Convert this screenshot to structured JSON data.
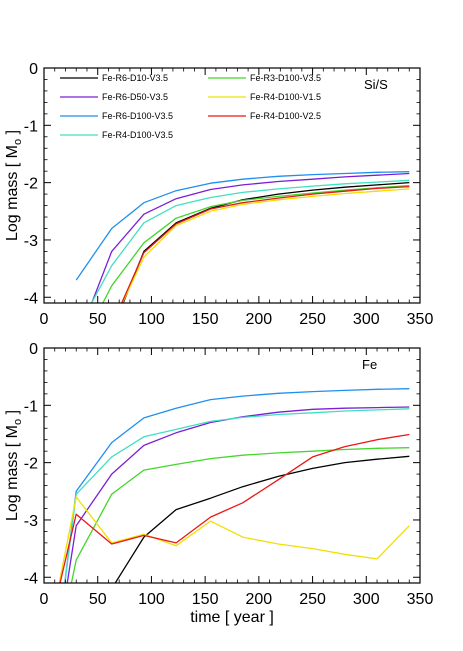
{
  "chart_data": [
    {
      "type": "line",
      "annotation": "Si/S",
      "xlabel": "",
      "ylabel": "Log mass [ M",
      "ylabel_sub": "o",
      "ylabel_end": " ]",
      "xlim": [
        0,
        350
      ],
      "ylim": [
        -4.1,
        0
      ],
      "xticks": [
        "0",
        "50",
        "100",
        "150",
        "200",
        "250",
        "300",
        "350"
      ],
      "yticks": [
        "0",
        "-1",
        "-2",
        "-3",
        "-4"
      ],
      "x": [
        10,
        30,
        63,
        93,
        123,
        155,
        185,
        218,
        250,
        280,
        310,
        340
      ],
      "legend": [
        {
          "name": "Fe-R6-D10-V3.5",
          "color": "#000000"
        },
        {
          "name": "Fe-R6-D50-V3.5",
          "color": "#7b1fd6"
        },
        {
          "name": "Fe-R6-D100-V3.5",
          "color": "#1f8ff0"
        },
        {
          "name": "Fe-R4-D100-V3.5",
          "color": "#40e0c0"
        },
        {
          "name": "Fe-R3-D100-V3.5",
          "color": "#44d62c"
        },
        {
          "name": "Fe-R4-D100-V1.5",
          "color": "#f0e000"
        },
        {
          "name": "Fe-R4-D100-V2.5",
          "color": "#e81818"
        }
      ],
      "series": [
        {
          "name": "Fe-R6-D10-V3.5",
          "values": [
            null,
            -5.2,
            -4.6,
            -3.2,
            -2.7,
            -2.45,
            -2.3,
            -2.2,
            -2.13,
            -2.08,
            -2.04,
            -2.0
          ]
        },
        {
          "name": "Fe-R6-D50-V3.5",
          "values": [
            null,
            -4.8,
            -3.2,
            -2.55,
            -2.28,
            -2.12,
            -2.04,
            -1.98,
            -1.94,
            -1.9,
            -1.87,
            -1.84
          ]
        },
        {
          "name": "Fe-R6-D100-V3.5",
          "values": [
            null,
            -3.7,
            -2.8,
            -2.35,
            -2.14,
            -2.01,
            -1.94,
            -1.89,
            -1.86,
            -1.84,
            -1.82,
            -1.81
          ]
        },
        {
          "name": "Fe-R4-D100-V3.5",
          "values": [
            null,
            -4.6,
            -3.45,
            -2.7,
            -2.4,
            -2.26,
            -2.17,
            -2.11,
            -2.06,
            -2.02,
            -1.99,
            -1.96
          ]
        },
        {
          "name": "Fe-R3-D100-V3.5",
          "values": [
            null,
            -5.0,
            -3.8,
            -3.05,
            -2.62,
            -2.42,
            -2.31,
            -2.24,
            -2.18,
            -2.13,
            -2.09,
            -2.05
          ]
        },
        {
          "name": "Fe-R4-D100-V1.5",
          "values": [
            null,
            -5.3,
            -4.5,
            -3.3,
            -2.75,
            -2.5,
            -2.38,
            -2.3,
            -2.24,
            -2.19,
            -2.15,
            -2.11
          ]
        },
        {
          "name": "Fe-R4-D100-V2.5",
          "values": [
            null,
            -5.2,
            -4.5,
            -3.22,
            -2.72,
            -2.46,
            -2.35,
            -2.27,
            -2.2,
            -2.15,
            -2.1,
            -2.07
          ]
        }
      ]
    },
    {
      "type": "line",
      "annotation": "Fe",
      "xlabel": "time [ year ]",
      "ylabel": "Log mass [ M",
      "ylabel_sub": "o",
      "ylabel_end": " ]",
      "xlim": [
        0,
        350
      ],
      "ylim": [
        -4.1,
        0
      ],
      "xticks": [
        "0",
        "50",
        "100",
        "150",
        "200",
        "250",
        "300",
        "350"
      ],
      "yticks": [
        "0",
        "-1",
        "-2",
        "-3",
        "-4"
      ],
      "x": [
        10,
        30,
        63,
        93,
        123,
        155,
        185,
        218,
        250,
        280,
        310,
        340
      ],
      "series": [
        {
          "name": "Fe-R6-D10-V3.5",
          "values": [
            null,
            -5.5,
            -4.2,
            -3.3,
            -2.82,
            -2.62,
            -2.42,
            -2.24,
            -2.1,
            -2.0,
            -1.94,
            -1.89
          ]
        },
        {
          "name": "Fe-R6-D50-V3.5",
          "values": [
            -5.5,
            -3.1,
            -2.2,
            -1.7,
            -1.48,
            -1.3,
            -1.2,
            -1.12,
            -1.07,
            -1.05,
            -1.04,
            -1.03
          ]
        },
        {
          "name": "Fe-R6-D100-V3.5",
          "values": [
            -5.5,
            -2.5,
            -1.65,
            -1.22,
            -1.05,
            -0.9,
            -0.84,
            -0.79,
            -0.76,
            -0.74,
            -0.72,
            -0.71
          ]
        },
        {
          "name": "Fe-R4-D100-V3.5",
          "values": [
            -5.5,
            -2.55,
            -1.9,
            -1.55,
            -1.42,
            -1.28,
            -1.21,
            -1.16,
            -1.13,
            -1.1,
            -1.08,
            -1.06
          ]
        },
        {
          "name": "Fe-R3-D100-V3.5",
          "values": [
            -5.5,
            -3.7,
            -2.55,
            -2.13,
            -2.03,
            -1.93,
            -1.87,
            -1.83,
            -1.8,
            -1.77,
            -1.75,
            -1.74
          ]
        },
        {
          "name": "Fe-R4-D100-V1.5",
          "values": [
            -4.5,
            -2.6,
            -3.4,
            -3.25,
            -3.45,
            -3.02,
            -3.3,
            -3.42,
            -3.5,
            -3.6,
            -3.68,
            -3.1
          ]
        },
        {
          "name": "Fe-R4-D100-V2.5",
          "values": [
            -4.5,
            -2.9,
            -3.42,
            -3.27,
            -3.4,
            -2.95,
            -2.7,
            -2.3,
            -1.9,
            -1.72,
            -1.6,
            -1.51
          ]
        }
      ]
    }
  ]
}
